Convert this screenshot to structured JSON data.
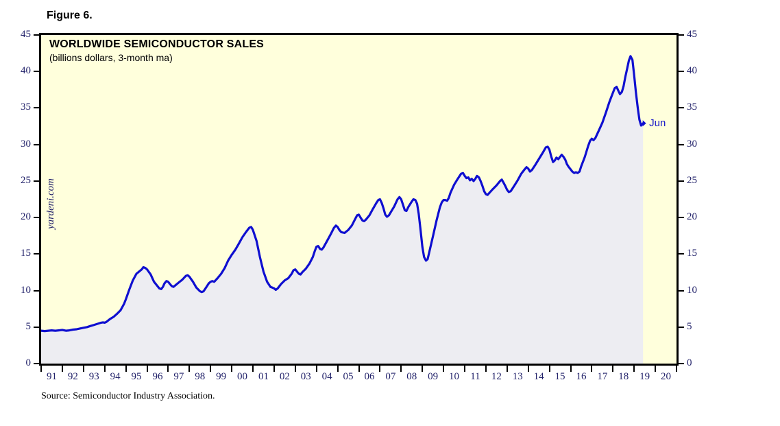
{
  "figure_label": "Figure 6.",
  "chart": {
    "title": "WORLDWIDE SEMICONDUCTOR SALES",
    "subtitle": "(billions dollars, 3-month ma)",
    "watermark": "yardeni.com",
    "source": "Source: Semiconductor Industry Association."
  },
  "colors": {
    "page_background": "#ffffff",
    "plot_background": "#ffffdc",
    "area_fill": "#ededf2",
    "line": "#0f0fd0",
    "border_and_ticks": "#000000",
    "axis_labels": "#22226a",
    "annotation": "#1515c8",
    "watermark": "#22226a"
  },
  "chart_data": {
    "type": "area",
    "title": "WORLDWIDE SEMICONDUCTOR SALES",
    "subtitle": "(billions dollars, 3-month ma)",
    "source": "Source: Semiconductor Industry Association.",
    "xlim": [
      1991,
      2021
    ],
    "ylim": [
      0,
      45
    ],
    "y_ticks": [
      0,
      5,
      10,
      15,
      20,
      25,
      30,
      35,
      40,
      45
    ],
    "y_axis_sides": [
      "left",
      "right"
    ],
    "x_tick_labels": [
      "91",
      "92",
      "93",
      "94",
      "95",
      "96",
      "97",
      "98",
      "99",
      "00",
      "01",
      "02",
      "03",
      "04",
      "05",
      "06",
      "07",
      "08",
      "09",
      "10",
      "11",
      "12",
      "13",
      "14",
      "15",
      "16",
      "17",
      "18",
      "19",
      "20"
    ],
    "grid": false,
    "annotations": [
      {
        "text": "Jun",
        "x": 2019.42,
        "y": 32.9
      }
    ],
    "series": [
      {
        "name": "Worldwide semiconductor sales (billions dollars, 3-month moving average)",
        "points": [
          [
            1991.0,
            4.5
          ],
          [
            1991.17,
            4.45
          ],
          [
            1991.33,
            4.5
          ],
          [
            1991.5,
            4.55
          ],
          [
            1991.67,
            4.5
          ],
          [
            1991.83,
            4.55
          ],
          [
            1992.0,
            4.6
          ],
          [
            1992.17,
            4.5
          ],
          [
            1992.33,
            4.55
          ],
          [
            1992.5,
            4.65
          ],
          [
            1992.67,
            4.7
          ],
          [
            1992.83,
            4.8
          ],
          [
            1993.0,
            4.9
          ],
          [
            1993.17,
            5.0
          ],
          [
            1993.33,
            5.15
          ],
          [
            1993.5,
            5.3
          ],
          [
            1993.67,
            5.45
          ],
          [
            1993.83,
            5.6
          ],
          [
            1993.92,
            5.65
          ],
          [
            1994.0,
            5.6
          ],
          [
            1994.08,
            5.7
          ],
          [
            1994.25,
            6.1
          ],
          [
            1994.42,
            6.4
          ],
          [
            1994.58,
            6.8
          ],
          [
            1994.75,
            7.3
          ],
          [
            1994.92,
            8.2
          ],
          [
            1995.0,
            8.8
          ],
          [
            1995.17,
            10.2
          ],
          [
            1995.33,
            11.4
          ],
          [
            1995.5,
            12.3
          ],
          [
            1995.67,
            12.7
          ],
          [
            1995.75,
            12.9
          ],
          [
            1995.83,
            13.2
          ],
          [
            1995.92,
            13.1
          ],
          [
            1996.0,
            12.9
          ],
          [
            1996.17,
            12.2
          ],
          [
            1996.33,
            11.2
          ],
          [
            1996.5,
            10.6
          ],
          [
            1996.58,
            10.3
          ],
          [
            1996.67,
            10.2
          ],
          [
            1996.75,
            10.5
          ],
          [
            1996.83,
            11.0
          ],
          [
            1996.92,
            11.3
          ],
          [
            1997.0,
            11.2
          ],
          [
            1997.08,
            10.9
          ],
          [
            1997.17,
            10.6
          ],
          [
            1997.25,
            10.5
          ],
          [
            1997.33,
            10.7
          ],
          [
            1997.5,
            11.1
          ],
          [
            1997.67,
            11.5
          ],
          [
            1997.83,
            12.0
          ],
          [
            1997.92,
            12.1
          ],
          [
            1998.0,
            11.9
          ],
          [
            1998.17,
            11.2
          ],
          [
            1998.33,
            10.4
          ],
          [
            1998.5,
            9.9
          ],
          [
            1998.58,
            9.8
          ],
          [
            1998.67,
            9.9
          ],
          [
            1998.83,
            10.6
          ],
          [
            1998.92,
            11.0
          ],
          [
            1999.0,
            11.2
          ],
          [
            1999.08,
            11.3
          ],
          [
            1999.17,
            11.2
          ],
          [
            1999.33,
            11.7
          ],
          [
            1999.5,
            12.3
          ],
          [
            1999.67,
            13.1
          ],
          [
            1999.83,
            14.1
          ],
          [
            2000.0,
            14.9
          ],
          [
            2000.17,
            15.6
          ],
          [
            2000.33,
            16.4
          ],
          [
            2000.5,
            17.3
          ],
          [
            2000.67,
            18.0
          ],
          [
            2000.83,
            18.6
          ],
          [
            2000.92,
            18.7
          ],
          [
            2001.0,
            18.3
          ],
          [
            2001.17,
            16.8
          ],
          [
            2001.33,
            14.6
          ],
          [
            2001.5,
            12.6
          ],
          [
            2001.67,
            11.2
          ],
          [
            2001.83,
            10.5
          ],
          [
            2001.92,
            10.4
          ],
          [
            2002.0,
            10.3
          ],
          [
            2002.08,
            10.1
          ],
          [
            2002.17,
            10.3
          ],
          [
            2002.33,
            10.9
          ],
          [
            2002.5,
            11.4
          ],
          [
            2002.67,
            11.7
          ],
          [
            2002.83,
            12.3
          ],
          [
            2002.92,
            12.8
          ],
          [
            2003.0,
            12.9
          ],
          [
            2003.08,
            12.6
          ],
          [
            2003.17,
            12.3
          ],
          [
            2003.25,
            12.2
          ],
          [
            2003.33,
            12.5
          ],
          [
            2003.5,
            13.0
          ],
          [
            2003.67,
            13.7
          ],
          [
            2003.83,
            14.6
          ],
          [
            2003.92,
            15.4
          ],
          [
            2004.0,
            16.0
          ],
          [
            2004.08,
            16.1
          ],
          [
            2004.17,
            15.7
          ],
          [
            2004.25,
            15.6
          ],
          [
            2004.33,
            15.9
          ],
          [
            2004.5,
            16.8
          ],
          [
            2004.67,
            17.7
          ],
          [
            2004.83,
            18.6
          ],
          [
            2004.92,
            18.9
          ],
          [
            2005.0,
            18.7
          ],
          [
            2005.08,
            18.3
          ],
          [
            2005.17,
            18.0
          ],
          [
            2005.33,
            17.9
          ],
          [
            2005.5,
            18.3
          ],
          [
            2005.67,
            18.9
          ],
          [
            2005.83,
            19.8
          ],
          [
            2005.92,
            20.3
          ],
          [
            2006.0,
            20.4
          ],
          [
            2006.08,
            20.0
          ],
          [
            2006.17,
            19.6
          ],
          [
            2006.25,
            19.5
          ],
          [
            2006.33,
            19.7
          ],
          [
            2006.5,
            20.3
          ],
          [
            2006.67,
            21.2
          ],
          [
            2006.83,
            22.0
          ],
          [
            2006.92,
            22.4
          ],
          [
            2007.0,
            22.5
          ],
          [
            2007.08,
            22.0
          ],
          [
            2007.17,
            21.2
          ],
          [
            2007.25,
            20.4
          ],
          [
            2007.33,
            20.1
          ],
          [
            2007.42,
            20.3
          ],
          [
            2007.5,
            20.7
          ],
          [
            2007.67,
            21.5
          ],
          [
            2007.83,
            22.5
          ],
          [
            2007.92,
            22.8
          ],
          [
            2008.0,
            22.5
          ],
          [
            2008.08,
            21.8
          ],
          [
            2008.17,
            21.0
          ],
          [
            2008.25,
            20.9
          ],
          [
            2008.33,
            21.4
          ],
          [
            2008.5,
            22.2
          ],
          [
            2008.58,
            22.5
          ],
          [
            2008.67,
            22.4
          ],
          [
            2008.75,
            21.9
          ],
          [
            2008.83,
            20.5
          ],
          [
            2008.92,
            18.2
          ],
          [
            2009.0,
            16.0
          ],
          [
            2009.08,
            14.6
          ],
          [
            2009.17,
            14.1
          ],
          [
            2009.25,
            14.3
          ],
          [
            2009.33,
            15.3
          ],
          [
            2009.5,
            17.4
          ],
          [
            2009.67,
            19.6
          ],
          [
            2009.83,
            21.4
          ],
          [
            2009.92,
            22.1
          ],
          [
            2010.0,
            22.4
          ],
          [
            2010.08,
            22.4
          ],
          [
            2010.17,
            22.3
          ],
          [
            2010.25,
            22.7
          ],
          [
            2010.33,
            23.4
          ],
          [
            2010.5,
            24.5
          ],
          [
            2010.67,
            25.3
          ],
          [
            2010.83,
            26.0
          ],
          [
            2010.92,
            26.1
          ],
          [
            2011.0,
            25.7
          ],
          [
            2011.08,
            25.4
          ],
          [
            2011.17,
            25.5
          ],
          [
            2011.25,
            25.1
          ],
          [
            2011.33,
            25.3
          ],
          [
            2011.42,
            25.0
          ],
          [
            2011.5,
            25.3
          ],
          [
            2011.58,
            25.7
          ],
          [
            2011.67,
            25.5
          ],
          [
            2011.75,
            25.0
          ],
          [
            2011.83,
            24.4
          ],
          [
            2011.92,
            23.6
          ],
          [
            2012.0,
            23.2
          ],
          [
            2012.08,
            23.1
          ],
          [
            2012.17,
            23.4
          ],
          [
            2012.33,
            23.9
          ],
          [
            2012.5,
            24.4
          ],
          [
            2012.67,
            25.0
          ],
          [
            2012.75,
            25.2
          ],
          [
            2012.83,
            24.8
          ],
          [
            2012.92,
            24.3
          ],
          [
            2013.0,
            23.8
          ],
          [
            2013.08,
            23.5
          ],
          [
            2013.17,
            23.6
          ],
          [
            2013.33,
            24.3
          ],
          [
            2013.5,
            25.1
          ],
          [
            2013.67,
            26.0
          ],
          [
            2013.83,
            26.6
          ],
          [
            2013.92,
            26.9
          ],
          [
            2014.0,
            26.7
          ],
          [
            2014.08,
            26.3
          ],
          [
            2014.17,
            26.5
          ],
          [
            2014.33,
            27.2
          ],
          [
            2014.5,
            28.0
          ],
          [
            2014.67,
            28.8
          ],
          [
            2014.83,
            29.6
          ],
          [
            2014.92,
            29.7
          ],
          [
            2015.0,
            29.3
          ],
          [
            2015.08,
            28.4
          ],
          [
            2015.17,
            27.6
          ],
          [
            2015.25,
            27.8
          ],
          [
            2015.33,
            28.2
          ],
          [
            2015.42,
            28.0
          ],
          [
            2015.5,
            28.3
          ],
          [
            2015.58,
            28.6
          ],
          [
            2015.67,
            28.3
          ],
          [
            2015.75,
            27.9
          ],
          [
            2015.83,
            27.3
          ],
          [
            2015.92,
            26.9
          ],
          [
            2016.0,
            26.6
          ],
          [
            2016.08,
            26.3
          ],
          [
            2016.17,
            26.1
          ],
          [
            2016.25,
            26.2
          ],
          [
            2016.33,
            26.1
          ],
          [
            2016.42,
            26.3
          ],
          [
            2016.5,
            27.0
          ],
          [
            2016.67,
            28.3
          ],
          [
            2016.83,
            29.8
          ],
          [
            2016.92,
            30.5
          ],
          [
            2017.0,
            30.8
          ],
          [
            2017.08,
            30.6
          ],
          [
            2017.17,
            30.9
          ],
          [
            2017.33,
            31.9
          ],
          [
            2017.5,
            33.0
          ],
          [
            2017.67,
            34.4
          ],
          [
            2017.83,
            35.8
          ],
          [
            2017.92,
            36.5
          ],
          [
            2018.0,
            37.1
          ],
          [
            2018.08,
            37.7
          ],
          [
            2018.17,
            37.9
          ],
          [
            2018.25,
            37.4
          ],
          [
            2018.33,
            36.9
          ],
          [
            2018.42,
            37.2
          ],
          [
            2018.5,
            38.0
          ],
          [
            2018.58,
            39.2
          ],
          [
            2018.67,
            40.4
          ],
          [
            2018.75,
            41.5
          ],
          [
            2018.83,
            42.1
          ],
          [
            2018.92,
            41.6
          ],
          [
            2019.0,
            39.5
          ],
          [
            2019.08,
            37.2
          ],
          [
            2019.17,
            35.0
          ],
          [
            2019.25,
            33.4
          ],
          [
            2019.33,
            32.6
          ],
          [
            2019.42,
            32.9
          ]
        ]
      }
    ]
  }
}
